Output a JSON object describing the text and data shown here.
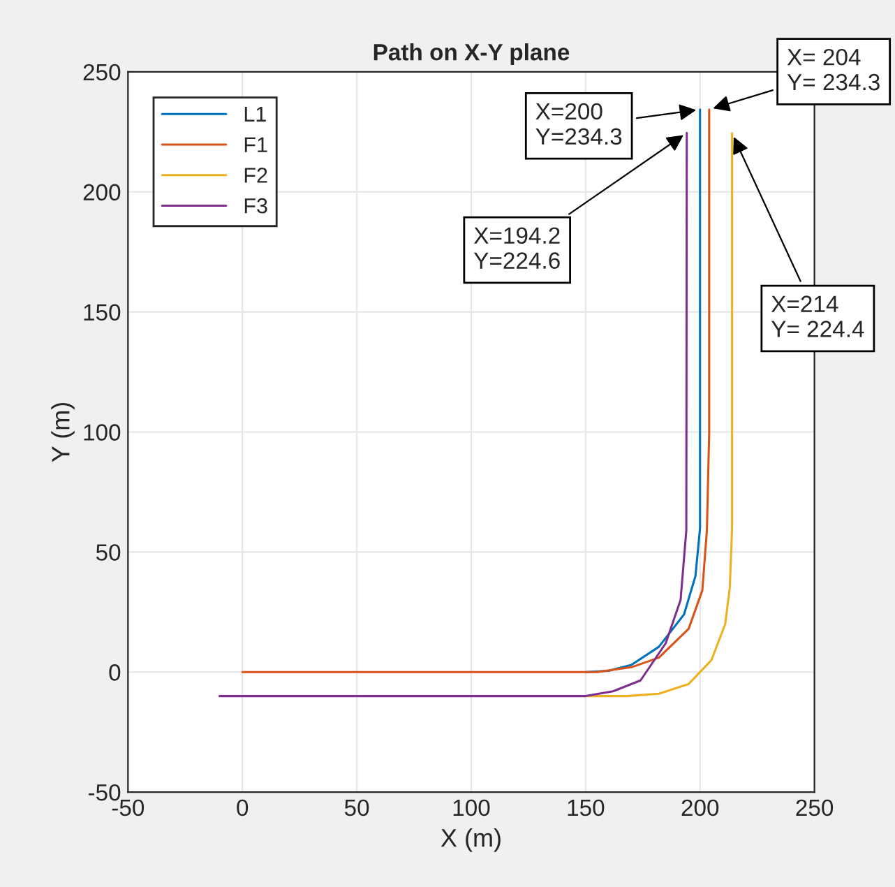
{
  "chart_data": {
    "type": "line",
    "title": "Path on X-Y plane",
    "xlabel": "X (m)",
    "ylabel": "Y (m)",
    "xlim": [
      -50,
      250
    ],
    "xticks": [
      -50,
      0,
      50,
      100,
      150,
      200,
      250
    ],
    "ylim": [
      -50,
      250
    ],
    "yticks": [
      -50,
      0,
      50,
      100,
      150,
      200,
      250
    ],
    "grid": true,
    "legend": "top left",
    "line_style": "solid",
    "marker": "none",
    "series": [
      {
        "name": "L1",
        "color": "#0072bd",
        "x": [
          150,
          160,
          170,
          182,
          193,
          198,
          200,
          200
        ],
        "values": [
          0,
          0.5,
          3,
          10.5,
          24,
          40,
          60,
          234.3
        ]
      },
      {
        "name": "F1",
        "color": "#d95319",
        "x": [
          0,
          155,
          170,
          182,
          195,
          201,
          203,
          204,
          204
        ],
        "values": [
          0,
          0,
          2,
          6,
          18,
          34,
          59,
          100,
          234.3
        ]
      },
      {
        "name": "F2",
        "color": "#edb120",
        "x": [
          150,
          168,
          182,
          195,
          205,
          211,
          213,
          214,
          214
        ],
        "values": [
          -10,
          -10,
          -9,
          -5,
          5,
          20,
          35,
          60,
          224.4
        ]
      },
      {
        "name": "F3",
        "color": "#7e2f8e",
        "x": [
          -10,
          150,
          162,
          174,
          185,
          191.5,
          194,
          194.2
        ],
        "values": [
          -10,
          -10,
          -8,
          -3.5,
          12,
          30,
          59,
          224.6
        ]
      }
    ],
    "annotations": [
      {
        "text": "X=200\nY=234.3",
        "x": 200,
        "y": 234.3
      },
      {
        "text": "X= 204\nY= 234.3",
        "x": 204,
        "y": 234.3
      },
      {
        "text": "X=194.2\nY=224.6",
        "x": 194.2,
        "y": 224.6
      },
      {
        "text": "X=214\nY= 224.4",
        "x": 214,
        "y": 224.4
      }
    ]
  }
}
